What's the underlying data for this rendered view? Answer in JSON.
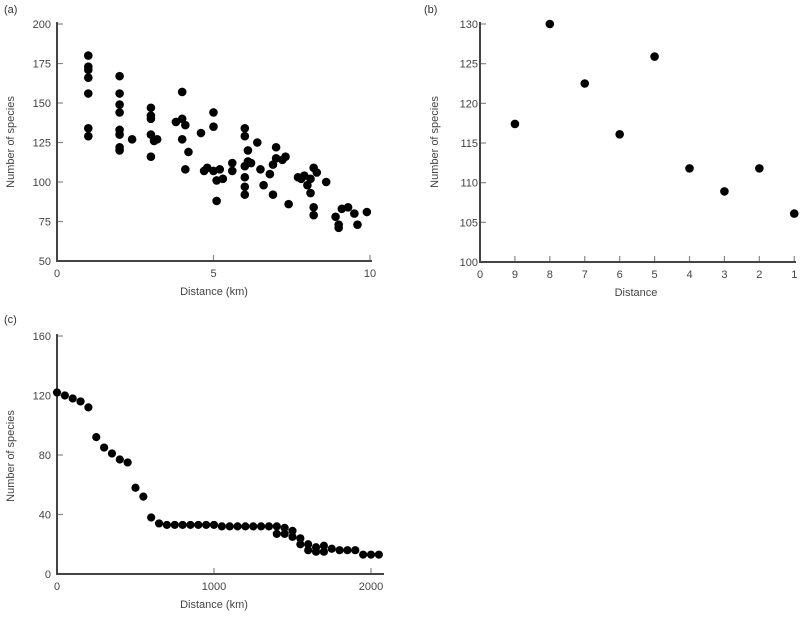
{
  "chart_data": [
    {
      "panel_label": "(a)",
      "type": "scatter",
      "xlabel": "Distance (km)",
      "ylabel": "Number of species",
      "xlim": [
        0,
        10
      ],
      "ylim": [
        50,
        200
      ],
      "x_ticks": [
        0,
        5,
        10
      ],
      "y_ticks": [
        50,
        75,
        100,
        125,
        150,
        175,
        200
      ],
      "grid": false,
      "points": [
        [
          1,
          180
        ],
        [
          1,
          173
        ],
        [
          1,
          171
        ],
        [
          1,
          166
        ],
        [
          1,
          156
        ],
        [
          1,
          134
        ],
        [
          1,
          129
        ],
        [
          2,
          167
        ],
        [
          2,
          156
        ],
        [
          2,
          149
        ],
        [
          2,
          144
        ],
        [
          2,
          133
        ],
        [
          2,
          130
        ],
        [
          2,
          122
        ],
        [
          2,
          120
        ],
        [
          2.4,
          127
        ],
        [
          3,
          147
        ],
        [
          3,
          142
        ],
        [
          3,
          140
        ],
        [
          3,
          130
        ],
        [
          3.2,
          127
        ],
        [
          3.1,
          126
        ],
        [
          3,
          116
        ],
        [
          4,
          157
        ],
        [
          3.8,
          138
        ],
        [
          4,
          140
        ],
        [
          4.1,
          136
        ],
        [
          4,
          127
        ],
        [
          4.2,
          119
        ],
        [
          4.1,
          108
        ],
        [
          4.6,
          131
        ],
        [
          4.7,
          107
        ],
        [
          5,
          144
        ],
        [
          5,
          135
        ],
        [
          4.8,
          109
        ],
        [
          5,
          107
        ],
        [
          5.2,
          108
        ],
        [
          5.1,
          101
        ],
        [
          5.3,
          102
        ],
        [
          5.1,
          88
        ],
        [
          5.6,
          112
        ],
        [
          5.6,
          107
        ],
        [
          6,
          134
        ],
        [
          6,
          129
        ],
        [
          6.1,
          120
        ],
        [
          6.4,
          125
        ],
        [
          6.1,
          113
        ],
        [
          6.2,
          112
        ],
        [
          6,
          110
        ],
        [
          6,
          103
        ],
        [
          6,
          97
        ],
        [
          6,
          92
        ],
        [
          6.5,
          108
        ],
        [
          6.6,
          98
        ],
        [
          6.8,
          105
        ],
        [
          6.9,
          111
        ],
        [
          7,
          122
        ],
        [
          7,
          115
        ],
        [
          7.3,
          116
        ],
        [
          7.2,
          114
        ],
        [
          6.9,
          92
        ],
        [
          7.4,
          86
        ],
        [
          7.7,
          103
        ],
        [
          7.9,
          104
        ],
        [
          7.8,
          102
        ],
        [
          8.2,
          109
        ],
        [
          8.3,
          106
        ],
        [
          8.1,
          102
        ],
        [
          8,
          98
        ],
        [
          8.1,
          93
        ],
        [
          8.2,
          84
        ],
        [
          8.6,
          100
        ],
        [
          8.2,
          79
        ],
        [
          8.9,
          78
        ],
        [
          9.1,
          83
        ],
        [
          9.3,
          84
        ],
        [
          9.5,
          80
        ],
        [
          9,
          73
        ],
        [
          9,
          71
        ],
        [
          9.6,
          73
        ],
        [
          9.9,
          81
        ]
      ]
    },
    {
      "panel_label": "(b)",
      "type": "scatter",
      "xlabel": "Distance",
      "ylabel": "Number of species",
      "x_tick_labels": [
        "0",
        "9",
        "8",
        "7",
        "6",
        "5",
        "4",
        "3",
        "2",
        "1"
      ],
      "ylim": [
        100,
        130
      ],
      "y_ticks": [
        100,
        105,
        110,
        115,
        120,
        125,
        130
      ],
      "grid": false,
      "categories": [
        "9",
        "8",
        "7",
        "6",
        "5",
        "4",
        "3",
        "2",
        "1"
      ],
      "values": [
        117.4,
        130,
        122.5,
        116.1,
        125.9,
        111.8,
        108.9,
        111.8,
        106.1
      ]
    },
    {
      "panel_label": "(c)",
      "type": "scatter",
      "xlabel": "Distance (km)",
      "ylabel": "Number of species",
      "xlim": [
        0,
        2000
      ],
      "ylim": [
        0,
        160
      ],
      "x_ticks": [
        0,
        1000,
        2000
      ],
      "y_ticks": [
        0,
        40,
        80,
        120,
        160
      ],
      "grid": false,
      "points": [
        [
          0,
          122
        ],
        [
          50,
          120
        ],
        [
          100,
          118
        ],
        [
          150,
          116
        ],
        [
          200,
          112
        ],
        [
          250,
          92
        ],
        [
          300,
          85
        ],
        [
          350,
          81
        ],
        [
          400,
          77
        ],
        [
          450,
          75
        ],
        [
          500,
          58
        ],
        [
          550,
          52
        ],
        [
          600,
          38
        ],
        [
          650,
          34
        ],
        [
          700,
          33
        ],
        [
          750,
          33
        ],
        [
          800,
          33
        ],
        [
          850,
          33
        ],
        [
          900,
          33
        ],
        [
          950,
          33
        ],
        [
          1000,
          33
        ],
        [
          1050,
          32
        ],
        [
          1100,
          32
        ],
        [
          1150,
          32
        ],
        [
          1200,
          32
        ],
        [
          1250,
          32
        ],
        [
          1300,
          32
        ],
        [
          1350,
          32
        ],
        [
          1400,
          32
        ],
        [
          1400,
          27
        ],
        [
          1450,
          31
        ],
        [
          1450,
          27
        ],
        [
          1500,
          29
        ],
        [
          1500,
          25
        ],
        [
          1550,
          24
        ],
        [
          1550,
          20
        ],
        [
          1600,
          20
        ],
        [
          1600,
          16
        ],
        [
          1650,
          18
        ],
        [
          1650,
          15
        ],
        [
          1700,
          19
        ],
        [
          1700,
          15
        ],
        [
          1750,
          17
        ],
        [
          1800,
          16
        ],
        [
          1850,
          16
        ],
        [
          1900,
          16
        ],
        [
          1950,
          13
        ],
        [
          2000,
          13
        ],
        [
          2050,
          13
        ]
      ]
    }
  ]
}
